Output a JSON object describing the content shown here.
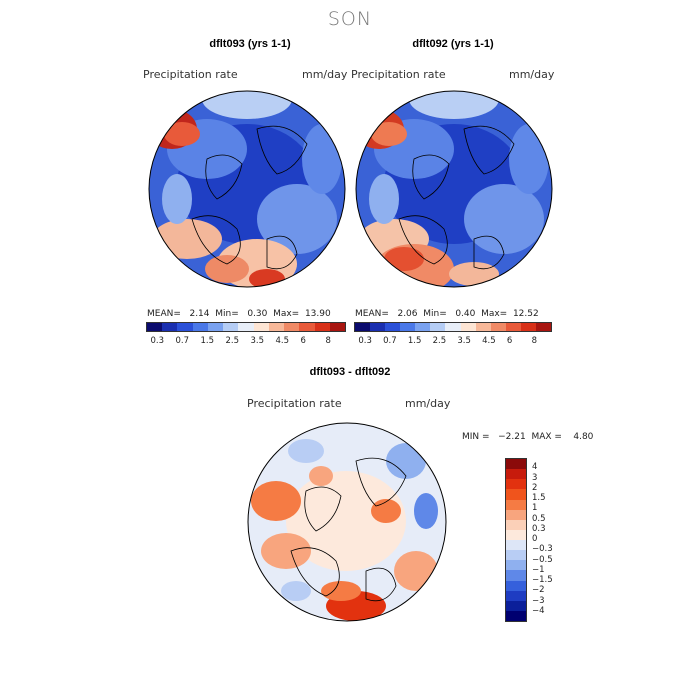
{
  "title": "SON",
  "panels": [
    {
      "title": "dflt093 (yrs 1-1)",
      "var_label": "Precipitation rate",
      "units": "mm/day",
      "stats": "MEAN=   2.14  Min=   0.30  Max=  13.90"
    },
    {
      "title": "dflt092 (yrs 1-1)",
      "var_label": "Precipitation rate",
      "units": "mm/day",
      "stats": "MEAN=   2.06  Min=   0.40  Max=  12.52"
    }
  ],
  "diff": {
    "title": "dflt093 - dflt092",
    "var_label": "Precipitation rate",
    "units": "mm/day",
    "stats": "MIN =   −2.21  MAX =    4.80"
  },
  "precip_colorbar": {
    "colors": [
      "#0b0b6e",
      "#1a2fb0",
      "#2b50d8",
      "#4a78e8",
      "#7aa2f0",
      "#b5cdf5",
      "#e8eef8",
      "#fde5d4",
      "#f7b899",
      "#f08a66",
      "#e85a3a",
      "#d83018",
      "#a81510"
    ],
    "ticks": [
      "0.3",
      "0.7",
      "1.5",
      "2.5",
      "3.5",
      "4.5",
      "6",
      "8"
    ]
  },
  "diff_colorbar": {
    "colors": [
      "#8b0a0a",
      "#c71b0c",
      "#e2320f",
      "#f0541c",
      "#f57b44",
      "#f8a57e",
      "#fbd0b8",
      "#fde9dc",
      "#dde6f7",
      "#b8cdf4",
      "#8fb0ef",
      "#5f88e8",
      "#3560dc",
      "#1e3cc2",
      "#0b1f9a",
      "#000070"
    ],
    "ticks": [
      "4",
      "3",
      "2",
      "1.5",
      "1",
      "0.5",
      "0.3",
      "0",
      "−0.3",
      "−0.5",
      "−1",
      "−1.5",
      "−2",
      "−3",
      "−4"
    ]
  }
}
